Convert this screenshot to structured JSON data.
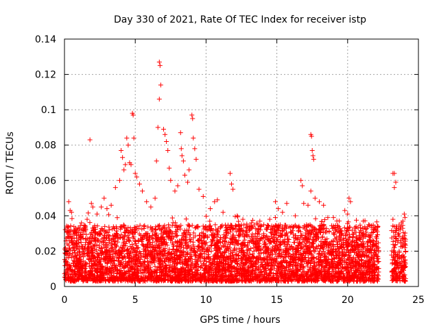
{
  "chart_data": {
    "type": "scatter",
    "title": "Day 330 of 2021, Rate Of TEC Index for receiver istp",
    "xlabel": "GPS time / hours",
    "ylabel": "ROTI / TECUs",
    "xlim": [
      0,
      25
    ],
    "ylim": [
      0,
      0.14
    ],
    "xticks": [
      "0",
      "5",
      "10",
      "15",
      "20",
      "25"
    ],
    "yticks": [
      "0",
      "0.02",
      "0.04",
      "0.06",
      "0.08",
      "0.1",
      "0.12",
      "0.14"
    ],
    "grid": true,
    "marker": "+",
    "color": "#ff0000",
    "series": [
      {
        "points": [
          [
            0.3,
            0.048
          ],
          [
            0.4,
            0.043
          ],
          [
            0.5,
            0.042
          ],
          [
            0.8,
            0.033
          ],
          [
            1.2,
            0.036
          ],
          [
            1.6,
            0.038
          ],
          [
            1.8,
            0.083
          ],
          [
            1.9,
            0.047
          ],
          [
            2.0,
            0.045
          ],
          [
            2.3,
            0.041
          ],
          [
            2.6,
            0.045
          ],
          [
            2.8,
            0.05
          ],
          [
            3.0,
            0.044
          ],
          [
            3.3,
            0.046
          ],
          [
            3.6,
            0.056
          ],
          [
            3.9,
            0.06
          ],
          [
            4.0,
            0.077
          ],
          [
            4.1,
            0.073
          ],
          [
            4.2,
            0.066
          ],
          [
            4.3,
            0.069
          ],
          [
            4.4,
            0.084
          ],
          [
            4.5,
            0.08
          ],
          [
            4.6,
            0.07
          ],
          [
            4.7,
            0.069
          ],
          [
            4.8,
            0.098
          ],
          [
            4.85,
            0.097
          ],
          [
            4.9,
            0.084
          ],
          [
            5.0,
            0.064
          ],
          [
            5.1,
            0.062
          ],
          [
            5.3,
            0.058
          ],
          [
            5.5,
            0.054
          ],
          [
            5.8,
            0.048
          ],
          [
            6.1,
            0.045
          ],
          [
            6.4,
            0.05
          ],
          [
            6.5,
            0.071
          ],
          [
            6.6,
            0.09
          ],
          [
            6.7,
            0.127
          ],
          [
            6.75,
            0.125
          ],
          [
            6.8,
            0.114
          ],
          [
            6.7,
            0.106
          ],
          [
            7.0,
            0.089
          ],
          [
            7.1,
            0.086
          ],
          [
            7.2,
            0.082
          ],
          [
            7.3,
            0.077
          ],
          [
            7.4,
            0.067
          ],
          [
            7.5,
            0.06
          ],
          [
            7.8,
            0.054
          ],
          [
            8.0,
            0.057
          ],
          [
            8.2,
            0.087
          ],
          [
            8.25,
            0.078
          ],
          [
            8.3,
            0.074
          ],
          [
            8.4,
            0.071
          ],
          [
            8.5,
            0.063
          ],
          [
            8.7,
            0.059
          ],
          [
            8.8,
            0.066
          ],
          [
            9.0,
            0.097
          ],
          [
            9.05,
            0.095
          ],
          [
            9.1,
            0.084
          ],
          [
            9.2,
            0.078
          ],
          [
            9.3,
            0.072
          ],
          [
            9.5,
            0.055
          ],
          [
            9.8,
            0.051
          ],
          [
            10.3,
            0.044
          ],
          [
            10.6,
            0.048
          ],
          [
            10.8,
            0.049
          ],
          [
            11.2,
            0.042
          ],
          [
            11.7,
            0.064
          ],
          [
            11.8,
            0.058
          ],
          [
            11.9,
            0.055
          ],
          [
            12.2,
            0.04
          ],
          [
            12.6,
            0.038
          ],
          [
            13.2,
            0.036
          ],
          [
            13.8,
            0.037
          ],
          [
            14.5,
            0.038
          ],
          [
            14.9,
            0.048
          ],
          [
            15.1,
            0.044
          ],
          [
            15.4,
            0.042
          ],
          [
            15.7,
            0.047
          ],
          [
            16.3,
            0.04
          ],
          [
            16.7,
            0.06
          ],
          [
            16.8,
            0.057
          ],
          [
            16.9,
            0.047
          ],
          [
            17.2,
            0.046
          ],
          [
            17.4,
            0.086
          ],
          [
            17.45,
            0.085
          ],
          [
            17.5,
            0.077
          ],
          [
            17.55,
            0.074
          ],
          [
            17.6,
            0.072
          ],
          [
            17.4,
            0.054
          ],
          [
            17.7,
            0.05
          ],
          [
            18.0,
            0.048
          ],
          [
            18.3,
            0.046
          ],
          [
            18.6,
            0.039
          ],
          [
            19.0,
            0.039
          ],
          [
            19.8,
            0.043
          ],
          [
            20.1,
            0.05
          ],
          [
            20.2,
            0.048
          ],
          [
            20.0,
            0.041
          ],
          [
            20.6,
            0.034
          ],
          [
            21.1,
            0.03
          ],
          [
            21.6,
            0.029
          ],
          [
            22.0,
            0.028
          ],
          [
            23.2,
            0.064
          ],
          [
            23.3,
            0.064
          ],
          [
            23.4,
            0.059
          ],
          [
            23.3,
            0.056
          ],
          [
            23.2,
            0.038
          ],
          [
            23.8,
            0.036
          ],
          [
            24.0,
            0.041
          ],
          [
            24.05,
            0.039
          ],
          [
            23.9,
            0.037
          ]
        ]
      }
    ],
    "band_note": "dense clusters between 0 and ~0.035 across 0–22.2 h and 23.1–24.1 h"
  }
}
